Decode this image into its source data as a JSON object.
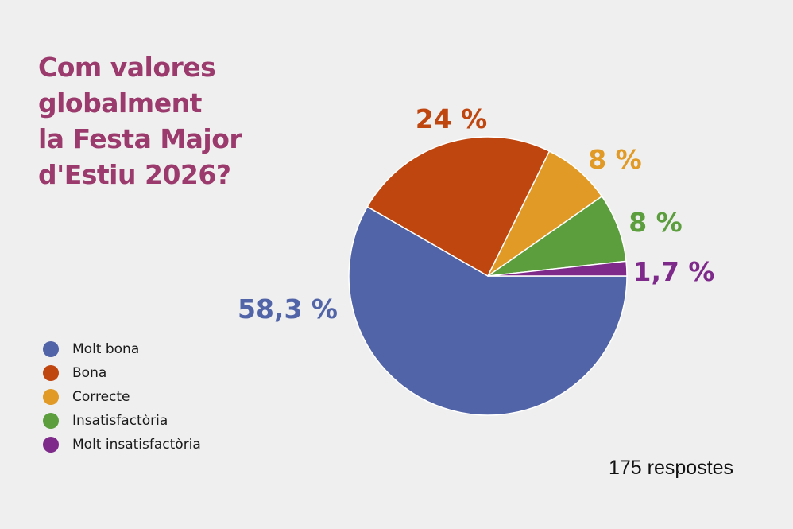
{
  "title_lines": [
    "Com valores",
    "globalment",
    "la Festa Major",
    "d'Estiu 2026?"
  ],
  "responses": "175 respostes",
  "chart_data": {
    "type": "pie",
    "title": "Com valores globalment la Festa Major d'Estiu 2026?",
    "categories": [
      "Molt bona",
      "Bona",
      "Correcte",
      "Insatisfactòria",
      "Molt insatisfactòria"
    ],
    "values": [
      58.3,
      24,
      8,
      8,
      1.7
    ],
    "value_labels": [
      "58,3 %",
      "24 %",
      "8 %",
      "8 %",
      "1,7 %"
    ],
    "colors": [
      "#5264a8",
      "#c0460f",
      "#e09a25",
      "#5c9e3e",
      "#7e2a8a"
    ],
    "legend_position": "left",
    "legend_colors": [
      "#5264a8",
      "#c0460f",
      "#e09a25",
      "#5c9e3e",
      "#7e2a8a"
    ]
  }
}
